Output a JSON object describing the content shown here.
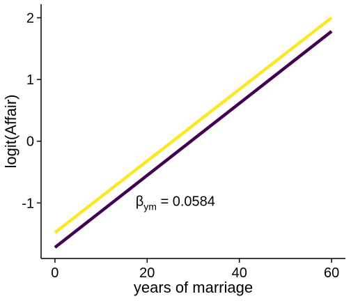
{
  "chart_data": {
    "type": "line",
    "title": "",
    "xlabel": "years of marriage",
    "ylabel": "logit(Affair)",
    "xlim": [
      -3,
      63
    ],
    "ylim": [
      -1.9,
      2.22
    ],
    "x_ticks": [
      0,
      20,
      40,
      60
    ],
    "y_ticks": [
      -1,
      0,
      1,
      2
    ],
    "grid": false,
    "legend": "none",
    "series": [
      {
        "x": [
          0,
          60
        ],
        "y": [
          -1.48,
          2.0
        ],
        "color": "#fde725"
      },
      {
        "x": [
          0,
          60
        ],
        "y": [
          -1.72,
          1.78
        ],
        "color": "#440154"
      }
    ],
    "annotation": {
      "symbol": "β",
      "subscript": "ym",
      "text": " = 0.0584",
      "x": 17.5,
      "y": -1.05
    }
  }
}
